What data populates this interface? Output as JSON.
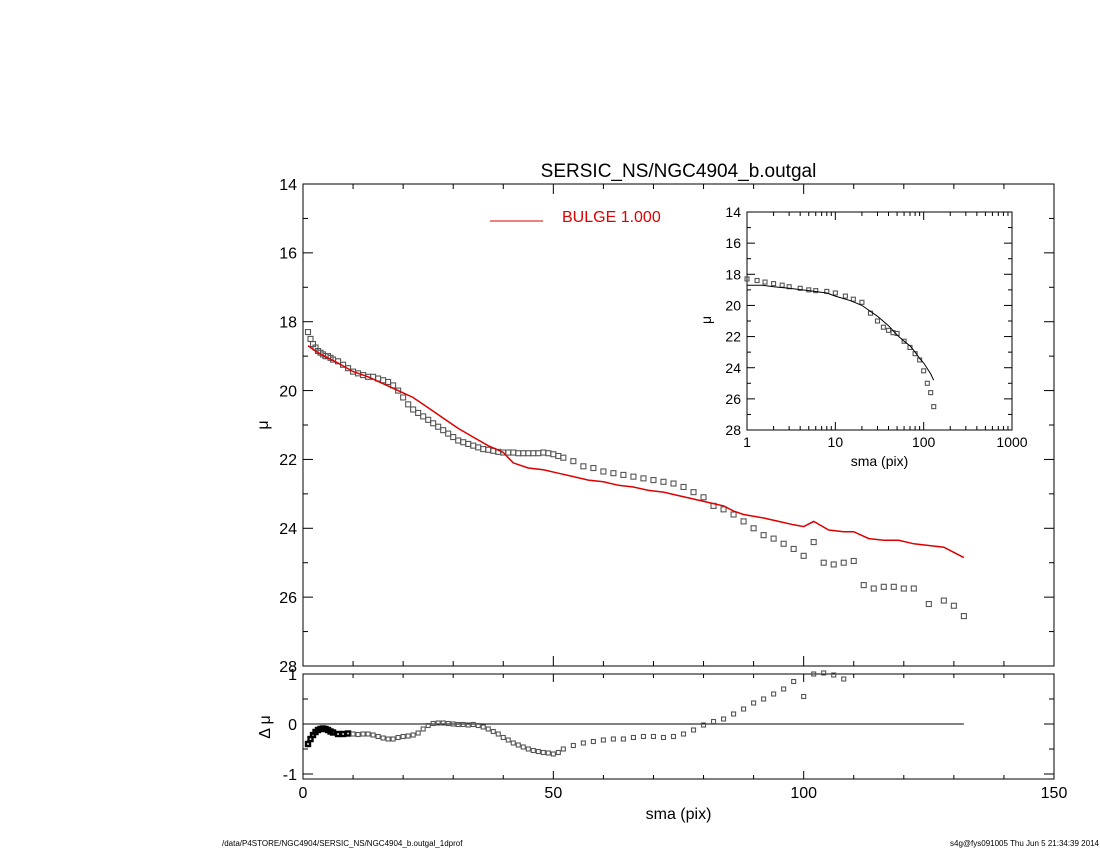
{
  "title": "SERSIC_NS/NGC4904_b.outgal",
  "footer": {
    "path": "/data/P4STORE/NGC4904/SERSIC_NS/NGC4904_b.outgal_1dprof",
    "stamp": "s4g@fys091005  Thu Jun  5 21:34:39 2014"
  },
  "colors": {
    "model": "#dd0000",
    "data": "#555555",
    "axes": "#000000"
  },
  "chart_data": [
    {
      "id": "main",
      "type": "scatter",
      "title": "SERSIC_NS/NGC4904_b.outgal",
      "xlabel": "",
      "ylabel": "μ",
      "xlim": [
        0,
        150
      ],
      "ylim": [
        28,
        14
      ],
      "y_inverted": true,
      "xticks": [
        0,
        50,
        100,
        150
      ],
      "yticks": [
        14,
        16,
        18,
        20,
        22,
        24,
        26,
        28
      ],
      "legend": {
        "position": "top-center",
        "label": "BULGE  1.000"
      },
      "series": [
        {
          "name": "BULGE  1.000",
          "kind": "line",
          "x": [
            1,
            2,
            3,
            5,
            7,
            10,
            13,
            16,
            19,
            22,
            25,
            28,
            31,
            34,
            37,
            40,
            42,
            45,
            48,
            51,
            54,
            57,
            60,
            63,
            66,
            69,
            72,
            75,
            78,
            81,
            84,
            86,
            88,
            90,
            92,
            95,
            98,
            100,
            102,
            105,
            108,
            110,
            113,
            116,
            119,
            122,
            125,
            128,
            130,
            132
          ],
          "y": [
            18.7,
            18.8,
            18.9,
            19.05,
            19.2,
            19.45,
            19.6,
            19.8,
            20.0,
            20.2,
            20.5,
            20.8,
            21.1,
            21.35,
            21.6,
            21.8,
            22.1,
            22.25,
            22.3,
            22.4,
            22.5,
            22.6,
            22.65,
            22.75,
            22.8,
            22.9,
            22.95,
            23.05,
            23.15,
            23.25,
            23.35,
            23.5,
            23.6,
            23.65,
            23.7,
            23.8,
            23.9,
            23.95,
            23.8,
            24.05,
            24.1,
            24.1,
            24.3,
            24.35,
            24.35,
            24.45,
            24.5,
            24.55,
            24.7,
            24.85
          ]
        },
        {
          "name": "",
          "kind": "points",
          "x": [
            1,
            1.5,
            2,
            2.5,
            3,
            3.5,
            4,
            4.5,
            5,
            5.5,
            6,
            7,
            8,
            9,
            10,
            11,
            12,
            13,
            14,
            15,
            16,
            17,
            18,
            19,
            20,
            21,
            22,
            23,
            24,
            25,
            26,
            27,
            28,
            29,
            30,
            31,
            32,
            33,
            34,
            35,
            36,
            37,
            38,
            39,
            40,
            41,
            42,
            43,
            44,
            45,
            46,
            47,
            48,
            49,
            50,
            51,
            52,
            54,
            56,
            58,
            60,
            62,
            64,
            66,
            68,
            70,
            72,
            74,
            76,
            78,
            80,
            82,
            84,
            86,
            88,
            90,
            92,
            94,
            96,
            98,
            100,
            102,
            104,
            106,
            108,
            110,
            112,
            114,
            116,
            118,
            120,
            122,
            125,
            128,
            130,
            132
          ],
          "y": [
            18.3,
            18.5,
            18.65,
            18.75,
            18.85,
            18.9,
            18.95,
            19.0,
            19.0,
            19.05,
            19.1,
            19.15,
            19.25,
            19.35,
            19.45,
            19.5,
            19.55,
            19.6,
            19.6,
            19.65,
            19.7,
            19.75,
            19.85,
            20.0,
            20.2,
            20.4,
            20.55,
            20.65,
            20.75,
            20.85,
            20.95,
            21.05,
            21.15,
            21.25,
            21.35,
            21.45,
            21.5,
            21.55,
            21.6,
            21.65,
            21.7,
            21.72,
            21.75,
            21.78,
            21.8,
            21.8,
            21.8,
            21.82,
            21.82,
            21.82,
            21.82,
            21.82,
            21.8,
            21.82,
            21.85,
            21.9,
            21.95,
            22.05,
            22.2,
            22.25,
            22.35,
            22.4,
            22.45,
            22.5,
            22.55,
            22.6,
            22.65,
            22.7,
            22.8,
            22.95,
            23.1,
            23.35,
            23.45,
            23.6,
            23.8,
            24.0,
            24.2,
            24.3,
            24.45,
            24.6,
            24.8,
            24.4,
            25.0,
            25.05,
            25.0,
            24.95,
            25.65,
            25.75,
            25.7,
            25.7,
            25.75,
            25.75,
            26.2,
            26.1,
            26.25,
            26.55
          ]
        }
      ]
    },
    {
      "id": "inset",
      "type": "line",
      "xscale": "log",
      "xlabel": "sma (pix)",
      "ylabel": "μ",
      "xlim": [
        1,
        1000
      ],
      "ylim": [
        28,
        14
      ],
      "xticks": [
        1,
        10,
        100,
        1000
      ],
      "yticks": [
        14,
        16,
        18,
        20,
        22,
        24,
        26,
        28
      ],
      "series": [
        {
          "name": "",
          "kind": "points",
          "x": [
            1,
            1.3,
            1.6,
            2,
            2.5,
            3,
            4,
            5,
            6,
            8,
            10,
            13,
            16,
            20,
            25,
            30,
            35,
            40,
            45,
            50,
            60,
            70,
            80,
            90,
            100,
            110,
            120,
            130
          ],
          "y": [
            18.3,
            18.4,
            18.5,
            18.6,
            18.7,
            18.8,
            18.9,
            19.0,
            19.05,
            19.1,
            19.2,
            19.4,
            19.6,
            19.8,
            20.5,
            21.0,
            21.4,
            21.6,
            21.75,
            21.8,
            22.3,
            22.7,
            23.1,
            23.5,
            24.2,
            25.0,
            25.6,
            26.5
          ]
        },
        {
          "name": "",
          "kind": "line",
          "x": [
            1,
            1.5,
            2,
            3,
            5,
            8,
            10,
            15,
            20,
            30,
            40,
            50,
            60,
            70,
            80,
            90,
            100,
            120,
            130
          ],
          "y": [
            18.7,
            18.7,
            18.8,
            18.9,
            19.05,
            19.2,
            19.4,
            19.7,
            20.0,
            20.7,
            21.3,
            21.9,
            22.3,
            22.6,
            23.0,
            23.4,
            23.7,
            24.4,
            24.8
          ]
        }
      ]
    },
    {
      "id": "residual",
      "type": "scatter",
      "xlabel": "sma (pix)",
      "ylabel": "Δ μ",
      "xlim": [
        0,
        150
      ],
      "ylim": [
        -1.1,
        1.0
      ],
      "xticks": [
        0,
        50,
        100,
        150
      ],
      "yticks": [
        -1,
        0,
        1
      ],
      "zero_line_xlim": [
        0,
        132
      ],
      "series": [
        {
          "name": "",
          "kind": "points",
          "x": [
            1,
            1.5,
            2,
            2.5,
            3,
            3.5,
            4,
            4.5,
            5,
            5.5,
            6,
            7,
            8,
            9,
            10,
            11,
            12,
            13,
            14,
            15,
            16,
            17,
            18,
            19,
            20,
            21,
            22,
            23,
            24,
            25,
            26,
            27,
            28,
            29,
            30,
            31,
            32,
            33,
            34,
            35,
            36,
            37,
            38,
            39,
            40,
            41,
            42,
            43,
            44,
            45,
            46,
            47,
            48,
            49,
            50,
            51,
            52,
            54,
            56,
            58,
            60,
            62,
            64,
            66,
            68,
            70,
            72,
            74,
            76,
            78,
            80,
            82,
            84,
            86,
            88,
            90,
            92,
            94,
            96,
            98,
            100,
            102,
            104,
            106,
            108
          ],
          "y": [
            -0.4,
            -0.3,
            -0.22,
            -0.16,
            -0.12,
            -0.1,
            -0.09,
            -0.1,
            -0.12,
            -0.15,
            -0.17,
            -0.2,
            -0.2,
            -0.19,
            -0.2,
            -0.21,
            -0.2,
            -0.2,
            -0.22,
            -0.25,
            -0.28,
            -0.3,
            -0.3,
            -0.27,
            -0.25,
            -0.24,
            -0.22,
            -0.18,
            -0.1,
            -0.03,
            0.01,
            0.02,
            0.02,
            0.01,
            0.0,
            -0.01,
            -0.01,
            -0.02,
            -0.01,
            -0.03,
            -0.06,
            -0.1,
            -0.15,
            -0.2,
            -0.27,
            -0.32,
            -0.38,
            -0.42,
            -0.46,
            -0.5,
            -0.53,
            -0.55,
            -0.57,
            -0.58,
            -0.6,
            -0.57,
            -0.5,
            -0.43,
            -0.38,
            -0.35,
            -0.32,
            -0.3,
            -0.3,
            -0.27,
            -0.25,
            -0.25,
            -0.27,
            -0.25,
            -0.2,
            -0.12,
            -0.02,
            0.05,
            0.1,
            0.2,
            0.3,
            0.42,
            0.5,
            0.6,
            0.7,
            0.85,
            0.55,
            1.0,
            1.02,
            0.98,
            0.9
          ]
        }
      ]
    }
  ]
}
